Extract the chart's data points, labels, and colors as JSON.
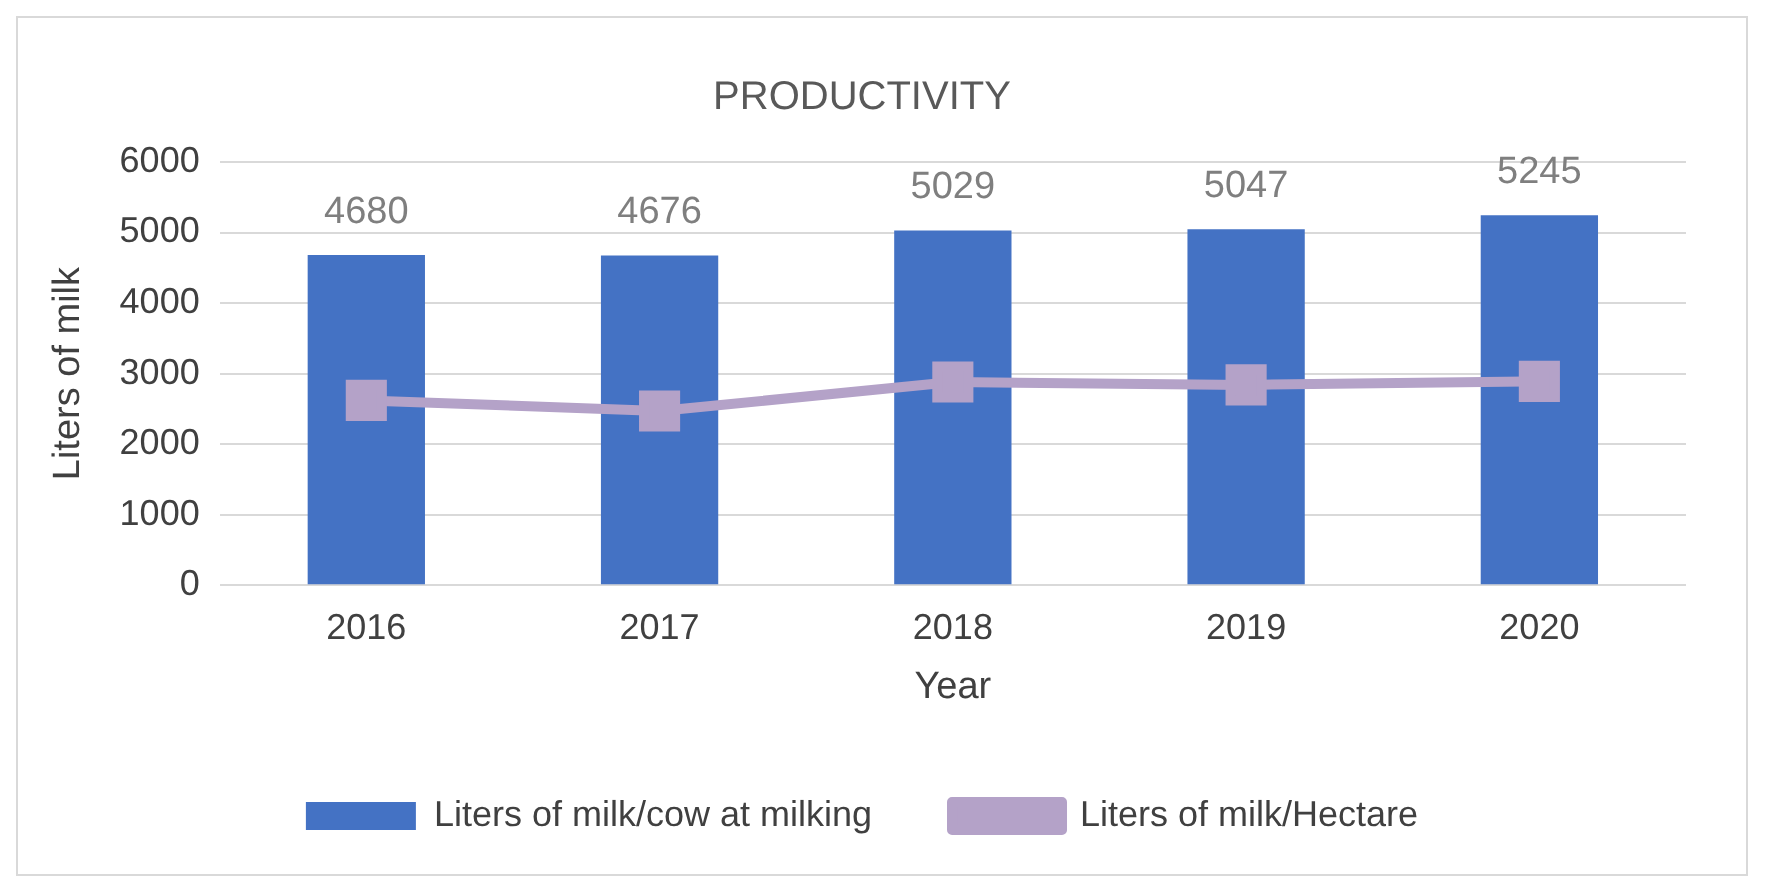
{
  "chart_data": {
    "type": "bar",
    "title": "PRODUCTIVITY",
    "xlabel": "Year",
    "ylabel": "Liters of milk",
    "categories": [
      "2016",
      "2017",
      "2018",
      "2019",
      "2020"
    ],
    "series": [
      {
        "name": "Liters of milk/cow at milking",
        "color": "#4472c4",
        "values": [
          4680,
          4676,
          5029,
          5047,
          5245
        ],
        "value_labels": [
          "4680",
          "4676",
          "5029",
          "5047",
          "5245"
        ]
      },
      {
        "name": "Liters of milk/Hectare",
        "type": "line",
        "color": "#b4a2c8",
        "marker": "square",
        "values": [
          2620,
          2470,
          2880,
          2840,
          2890
        ]
      }
    ],
    "ylim": [
      0,
      6000
    ],
    "yticks": [
      0,
      1000,
      2000,
      3000,
      4000,
      5000,
      6000
    ],
    "grid": "y",
    "legend": "bottom"
  }
}
